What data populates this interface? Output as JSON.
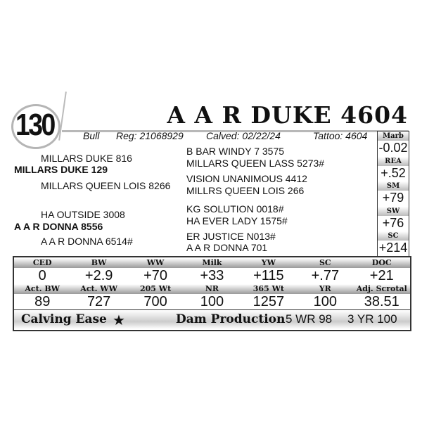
{
  "lot_number": "130",
  "animal_name": "A A R DUKE 4604",
  "info": {
    "sex": "Bull",
    "reg": "Reg: 21068929",
    "calved": "Calved: 02/22/24",
    "tattoo": "Tattoo: 4604"
  },
  "side_epds": [
    {
      "label": "Marb",
      "value": "-0.02"
    },
    {
      "label": "REA",
      "value": "+.52"
    },
    {
      "label": "SM",
      "value": "+79"
    },
    {
      "label": "SW",
      "value": "+76"
    },
    {
      "label": "SC",
      "value": "+214"
    }
  ],
  "pedigree": {
    "sire": "MILLARS DUKE 129",
    "sire_sire": "MILLARS DUKE 816",
    "sire_dam": "MILLARS QUEEN LOIS 8266",
    "dam": "A A R DONNA 8556",
    "dam_sire": "HA OUTSIDE 3008",
    "dam_dam": "A A R DONNA 6514#",
    "far": [
      "B BAR WINDY 7 3575",
      "MILLARS QUEEN LASS 5273#",
      "VISION UNANIMOUS 4412",
      "MILLRS QUEEN LOIS 266",
      "KG SOLUTION 0018#",
      "HA EVER LADY 1575#",
      "ER JUSTICE N013#",
      "A A R DONNA 701"
    ]
  },
  "epd_row": {
    "headers": [
      "CED",
      "BW",
      "WW",
      "Milk",
      "YW",
      "SC",
      "DOC"
    ],
    "values": [
      "0",
      "+2.9",
      "+70",
      "+33",
      "+115",
      "+.77",
      "+21"
    ]
  },
  "actual_row": {
    "headers": [
      "Act. BW",
      "Act. WW",
      "205 Wt",
      "NR",
      "365 Wt",
      "YR",
      "Adj. Scrotal"
    ],
    "values": [
      "89",
      "727",
      "700",
      "100",
      "1257",
      "100",
      "38.51"
    ]
  },
  "footer": {
    "calving_ease": "Calving Ease",
    "star": "★",
    "dam_production": "Dam Production",
    "wr": "5 WR 98",
    "yr": "3 YR 100"
  }
}
